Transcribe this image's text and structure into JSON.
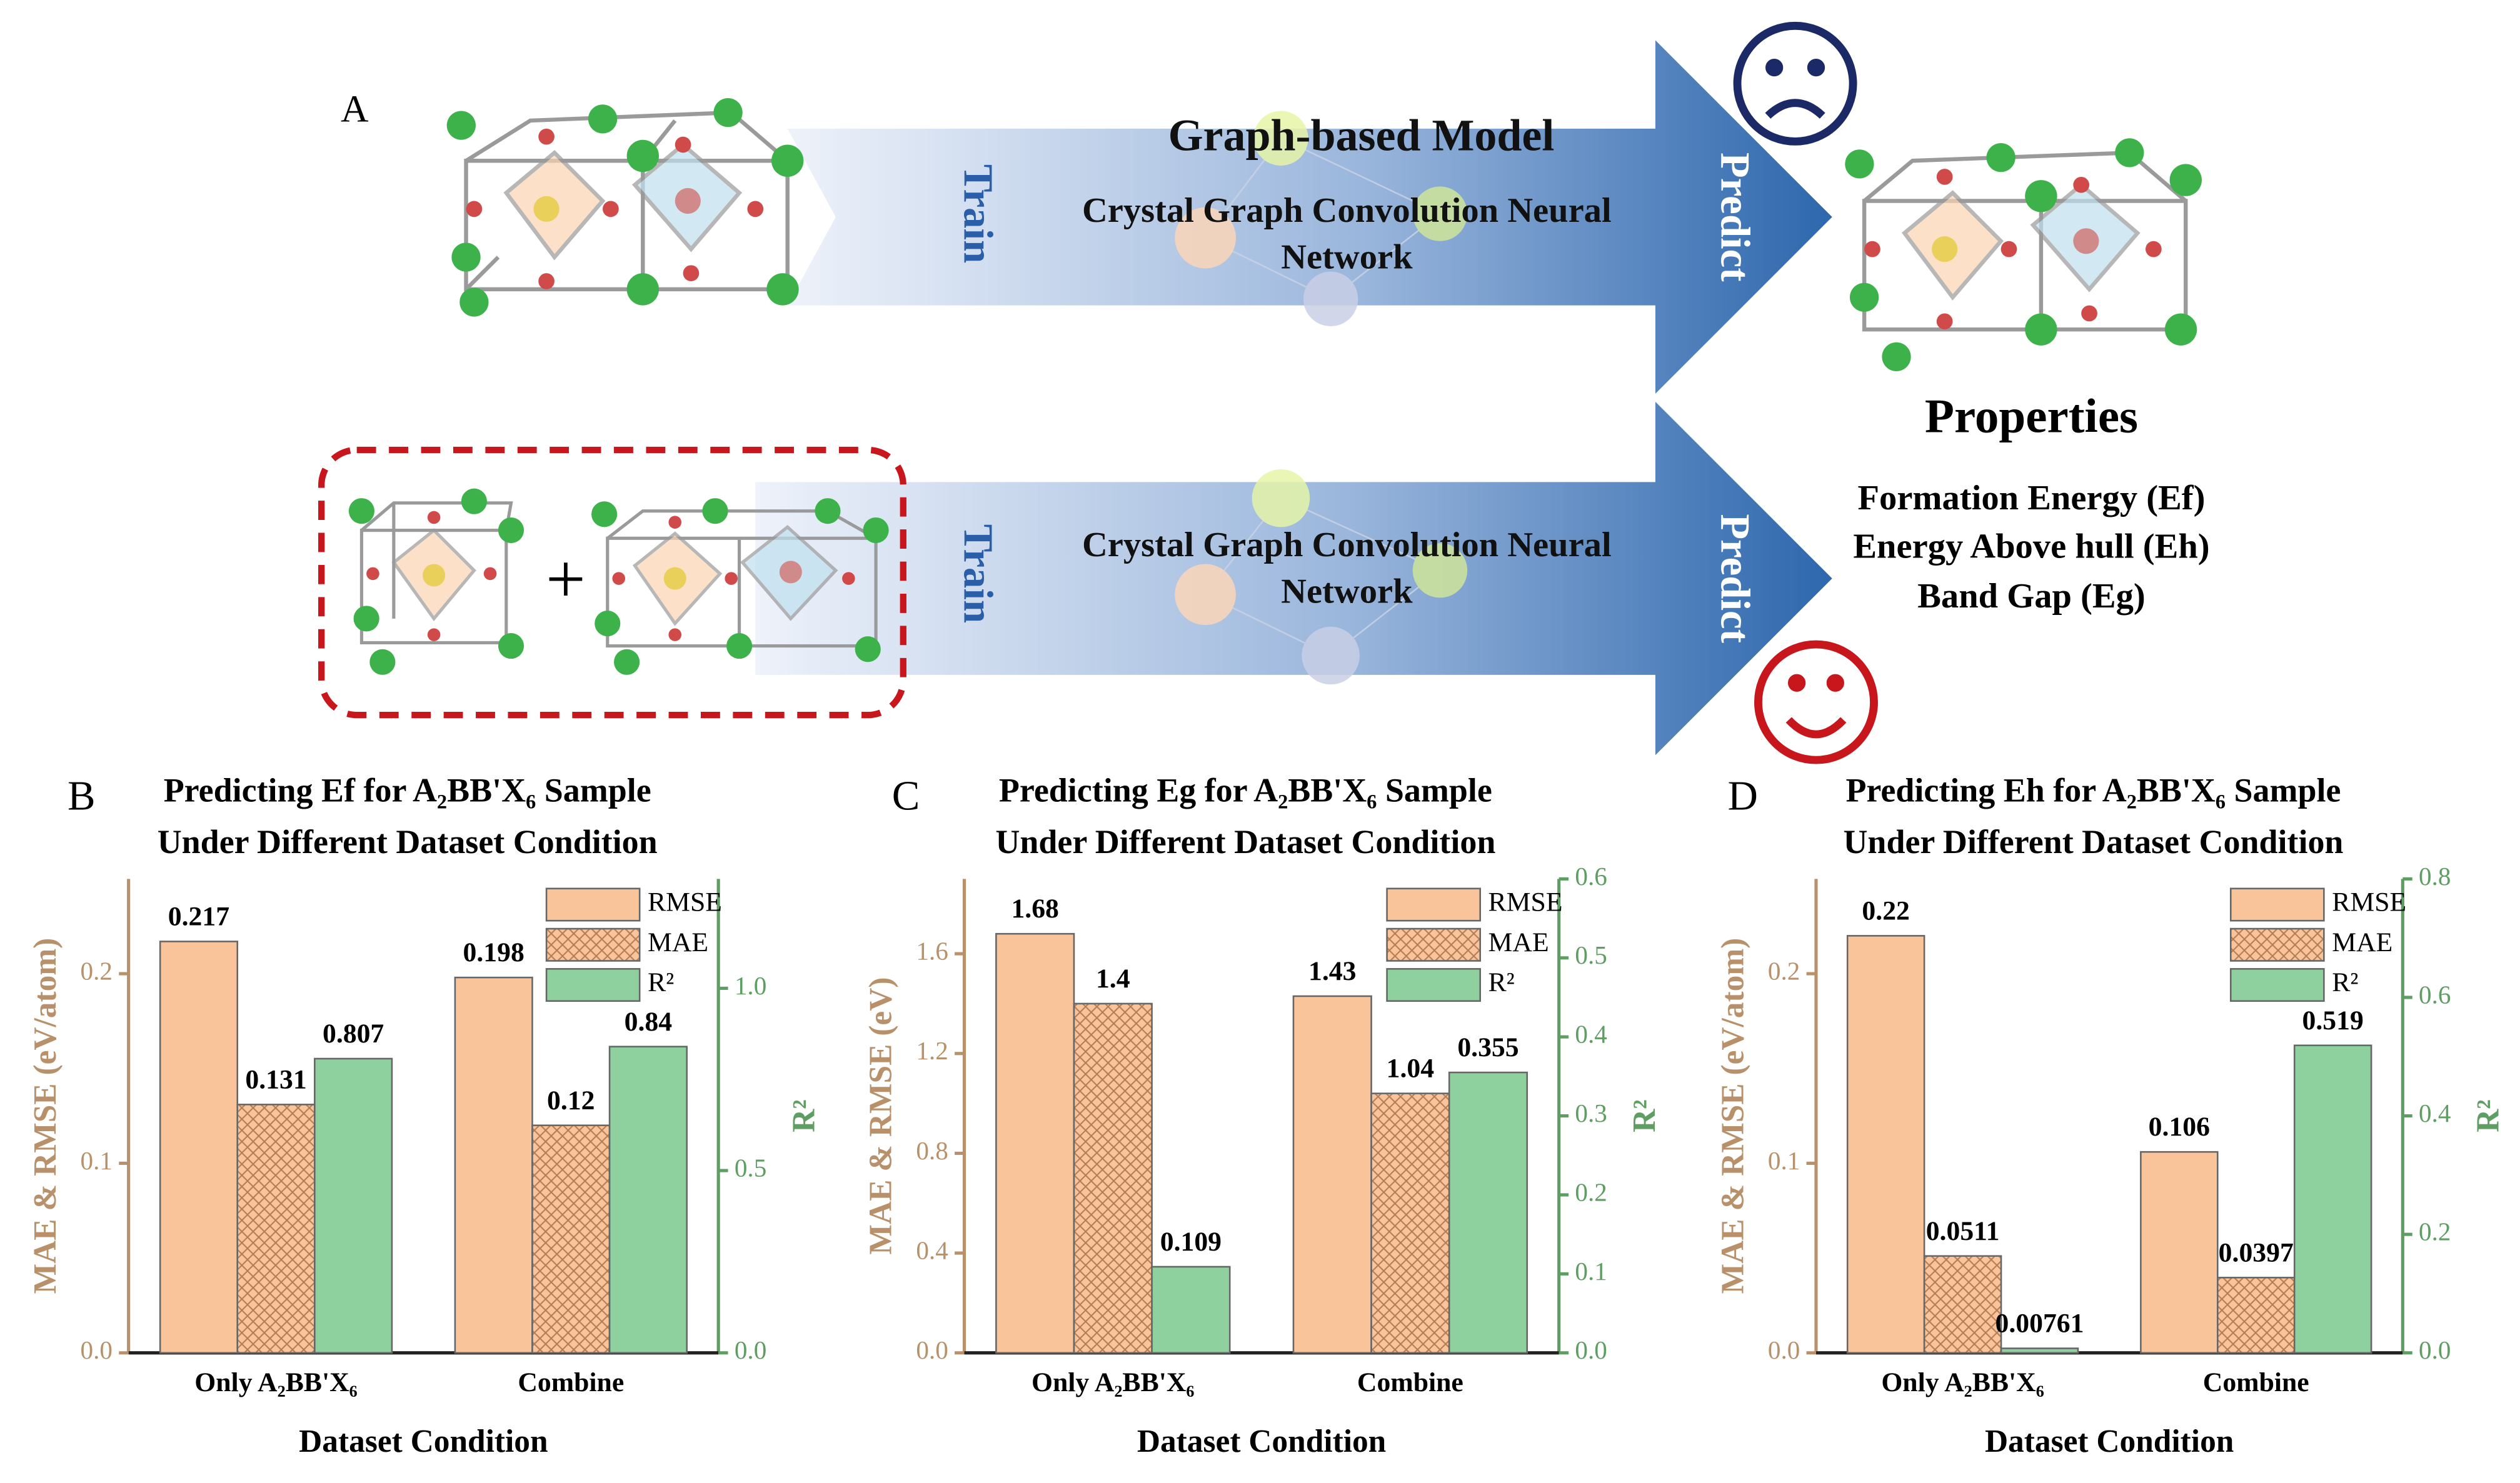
{
  "diagram": {
    "panel": "A",
    "model_title": "Graph-based Model",
    "train_top": "Train",
    "train_bottom": "Train",
    "network_top": [
      "Crystal Graph Convolution Neural",
      "Network"
    ],
    "network_bottom": [
      "Crystal Graph Convolution Neural",
      "Network"
    ],
    "predict_top": "Predict",
    "predict_bottom": "Predict",
    "plus": "+",
    "properties_title": "Properties",
    "properties": [
      "Formation Energy (Ef)",
      "Energy Above hull (Eh)",
      "Band Gap (Eg)"
    ]
  },
  "chart_data": [
    {
      "type": "bar",
      "panel": "B",
      "title": [
        "Predicting Ef for A₂BB'X₆ Sample",
        "Under Different Dataset Condition"
      ],
      "xlabel": "Dataset Condition",
      "ylabel": "MAE & RMSE (eV/atom)",
      "y2label": "R²",
      "categories": [
        "Only A₂BB'X₆",
        "Combine"
      ],
      "series": [
        {
          "name": "RMSE",
          "color": "#f9c49a",
          "values": [
            0.217,
            0.198
          ]
        },
        {
          "name": "MAE",
          "color": "#f9c49a",
          "hatch": true,
          "values": [
            0.131,
            0.12
          ]
        },
        {
          "name": "R²",
          "color": "#8fd19e",
          "axis": "y2",
          "values": [
            0.807,
            0.84
          ]
        }
      ],
      "ylim": [
        0,
        0.25
      ],
      "yticks": [
        {
          "value": 0,
          "label": "0.0"
        },
        0.1,
        0.2
      ],
      "y2lim": [
        0,
        1.3
      ],
      "y2ticks": [
        {
          "value": 0,
          "label": "0.0"
        },
        0.5,
        {
          "value": 1,
          "label": "1.0"
        }
      ],
      "legend": "upper right"
    },
    {
      "type": "bar",
      "panel": "C",
      "title": [
        "Predicting Eg for A₂BB'X₆ Sample",
        "Under Different Dataset Condition"
      ],
      "xlabel": "Dataset Condition",
      "ylabel": "MAE & RMSE (eV)",
      "y2label": "R²",
      "categories": [
        "Only A₂BB'X₆",
        "Combine"
      ],
      "series": [
        {
          "name": "RMSE",
          "color": "#f9c49a",
          "values": [
            1.68,
            1.43
          ]
        },
        {
          "name": "MAE",
          "color": "#f9c49a",
          "hatch": true,
          "values": [
            1.4,
            1.04
          ]
        },
        {
          "name": "R²",
          "color": "#8fd19e",
          "axis": "y2",
          "values": [
            0.109,
            0.355
          ]
        }
      ],
      "ylim": [
        0,
        1.9
      ],
      "yticks": [
        {
          "value": 0,
          "label": "0.0"
        },
        0.4,
        0.8,
        1.2,
        1.6
      ],
      "y2lim": [
        0,
        0.6
      ],
      "y2ticks": [
        {
          "value": 0,
          "label": "0.0"
        },
        0.1,
        0.2,
        0.3,
        0.4,
        0.5,
        0.6
      ],
      "legend": "upper right"
    },
    {
      "type": "bar",
      "panel": "D",
      "title": [
        "Predicting Eh for A₂BB'X₆ Sample",
        "Under Different Dataset Condition"
      ],
      "xlabel": "Dataset Condition",
      "ylabel": "MAE & RMSE (eV/atom)",
      "y2label": "R²",
      "categories": [
        "Only A₂BB'X₆",
        "Combine"
      ],
      "series": [
        {
          "name": "RMSE",
          "color": "#f9c49a",
          "values": [
            0.22,
            0.106
          ]
        },
        {
          "name": "MAE",
          "color": "#f9c49a",
          "hatch": true,
          "values": [
            0.0511,
            0.0397
          ]
        },
        {
          "name": "R²",
          "color": "#8fd19e",
          "axis": "y2",
          "values": [
            0.00761,
            0.519
          ]
        }
      ],
      "ylim": [
        0,
        0.25
      ],
      "yticks": [
        {
          "value": 0,
          "label": "0.0"
        },
        0.1,
        0.2
      ],
      "y2lim": [
        0,
        0.8
      ],
      "y2ticks": [
        {
          "value": 0,
          "label": "0.0"
        },
        0.2,
        0.4,
        0.6,
        0.8
      ],
      "legend": "upper right"
    }
  ]
}
